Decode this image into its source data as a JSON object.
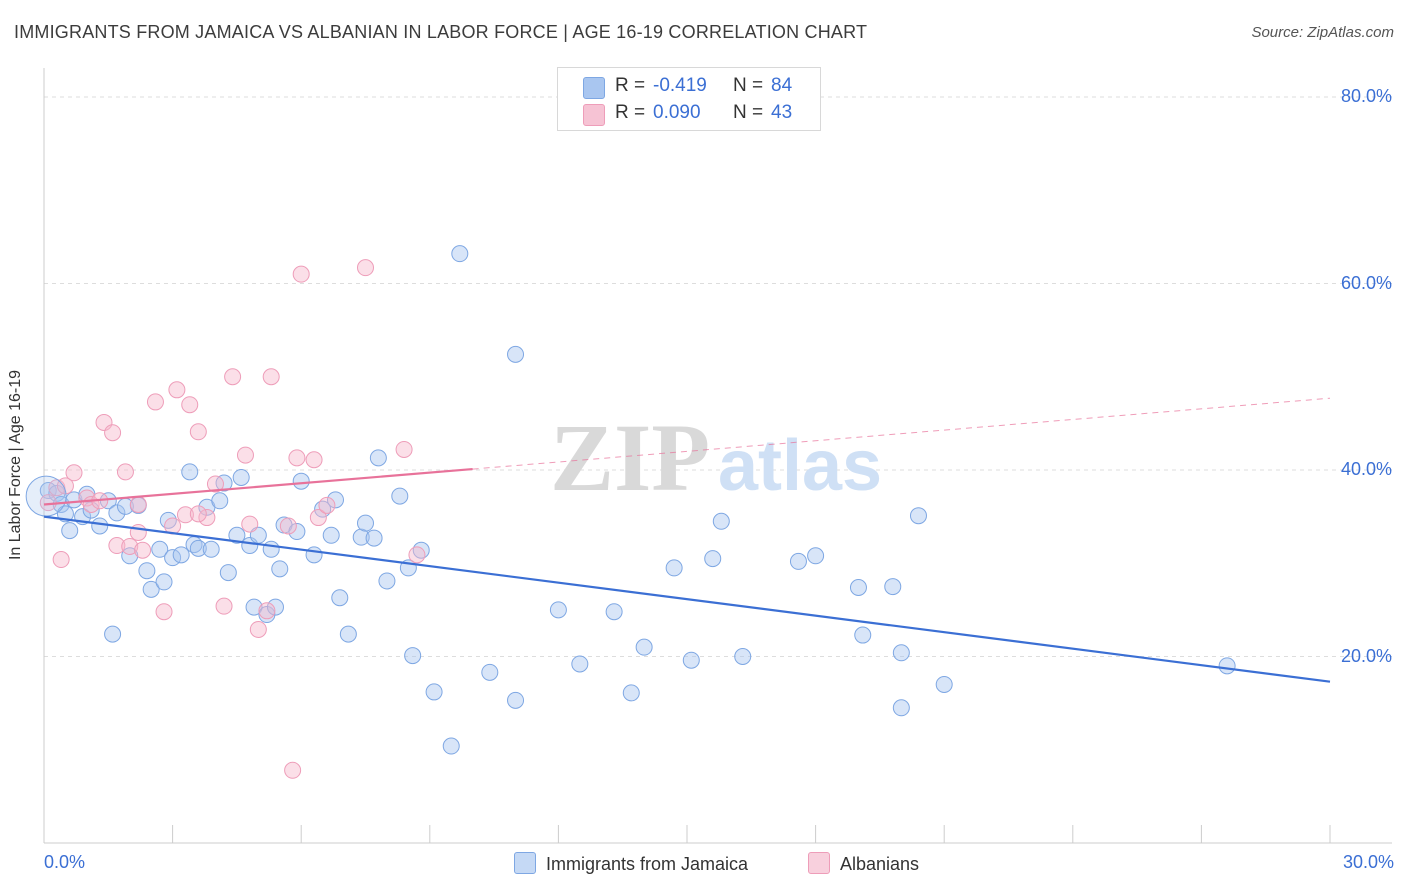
{
  "title": "IMMIGRANTS FROM JAMAICA VS ALBANIAN IN LABOR FORCE | AGE 16-19 CORRELATION CHART",
  "source": "Source: ZipAtlas.com",
  "watermark": "ZIPatlas",
  "colors": {
    "blue": "#3b6fd4",
    "blue_fill": "#a9c6f0",
    "pink": "#e8729a",
    "pink_fill": "#f6b8cc"
  },
  "legend": {
    "rows": [
      {
        "r_label": "R =",
        "r_value": "-0.419",
        "n_label": "N =",
        "n_value": "84"
      },
      {
        "r_label": "R =",
        "r_value": "0.090",
        "n_label": "N =",
        "n_value": "43"
      }
    ]
  },
  "chart_data": {
    "type": "scatter",
    "title": "IMMIGRANTS FROM JAMAICA VS ALBANIAN IN LABOR FORCE | AGE 16-19 CORRELATION CHART",
    "xlabel": "",
    "ylabel": "In Labor Force | Age 16-19",
    "xlim": [
      0,
      30
    ],
    "ylim": [
      0,
      80
    ],
    "x_tick_labels": [
      "0.0%",
      "30.0%"
    ],
    "y_tick_labels": [
      "20.0%",
      "40.0%",
      "60.0%",
      "80.0%"
    ],
    "y_ticks": [
      20,
      40,
      60,
      80
    ],
    "grid": true,
    "legend_position": "top-center",
    "series": [
      {
        "name": "Immigrants from Jamaica",
        "color": "#3b6fd4",
        "trend": {
          "x": [
            0,
            30
          ],
          "y": [
            35.0,
            17.3
          ],
          "dashed_from": null
        },
        "points": [
          [
            0.1,
            37.8
          ],
          [
            0.3,
            37.5
          ],
          [
            0.4,
            36.3
          ],
          [
            0.5,
            35.3
          ],
          [
            0.6,
            33.5
          ],
          [
            0.7,
            36.8
          ],
          [
            0.9,
            35.0
          ],
          [
            1.0,
            37.4
          ],
          [
            1.1,
            35.7
          ],
          [
            1.3,
            34.0
          ],
          [
            1.5,
            36.7
          ],
          [
            1.7,
            35.4
          ],
          [
            1.9,
            36.1
          ],
          [
            2.0,
            30.8
          ],
          [
            2.2,
            36.2
          ],
          [
            2.4,
            29.2
          ],
          [
            2.5,
            27.2
          ],
          [
            2.7,
            31.5
          ],
          [
            2.8,
            28.0
          ],
          [
            2.9,
            34.6
          ],
          [
            3.0,
            30.6
          ],
          [
            3.2,
            30.9
          ],
          [
            3.4,
            39.8
          ],
          [
            3.5,
            32.0
          ],
          [
            3.6,
            31.6
          ],
          [
            3.8,
            36.0
          ],
          [
            3.9,
            31.5
          ],
          [
            4.1,
            36.7
          ],
          [
            4.2,
            38.6
          ],
          [
            4.3,
            29.0
          ],
          [
            4.5,
            33.0
          ],
          [
            4.6,
            39.2
          ],
          [
            4.8,
            31.9
          ],
          [
            4.9,
            25.3
          ],
          [
            5.0,
            33.0
          ],
          [
            5.2,
            24.5
          ],
          [
            5.3,
            31.5
          ],
          [
            5.4,
            25.3
          ],
          [
            5.5,
            29.4
          ],
          [
            5.6,
            34.1
          ],
          [
            5.9,
            33.4
          ],
          [
            6.0,
            38.8
          ],
          [
            6.3,
            30.9
          ],
          [
            6.5,
            35.8
          ],
          [
            6.7,
            33.0
          ],
          [
            6.8,
            36.8
          ],
          [
            6.9,
            26.3
          ],
          [
            7.1,
            22.4
          ],
          [
            7.4,
            32.8
          ],
          [
            7.5,
            34.3
          ],
          [
            7.7,
            32.7
          ],
          [
            7.8,
            41.3
          ],
          [
            8.0,
            28.1
          ],
          [
            8.3,
            37.2
          ],
          [
            8.5,
            29.5
          ],
          [
            8.6,
            20.1
          ],
          [
            8.8,
            31.4
          ],
          [
            9.1,
            16.2
          ],
          [
            9.5,
            10.4
          ],
          [
            9.7,
            63.2
          ],
          [
            10.4,
            18.3
          ],
          [
            11.0,
            52.4
          ],
          [
            11.0,
            15.3
          ],
          [
            12.0,
            25.0
          ],
          [
            12.5,
            19.2
          ],
          [
            13.3,
            24.8
          ],
          [
            13.7,
            16.1
          ],
          [
            14.0,
            21.0
          ],
          [
            14.7,
            29.5
          ],
          [
            15.1,
            19.6
          ],
          [
            15.6,
            30.5
          ],
          [
            15.8,
            34.5
          ],
          [
            16.3,
            20.0
          ],
          [
            17.6,
            30.2
          ],
          [
            18.0,
            30.8
          ],
          [
            19.0,
            27.4
          ],
          [
            19.1,
            22.3
          ],
          [
            19.8,
            27.5
          ],
          [
            20.0,
            20.4
          ],
          [
            20.0,
            14.5
          ],
          [
            20.4,
            35.1
          ],
          [
            21.0,
            17.0
          ],
          [
            27.6,
            19.0
          ],
          [
            1.6,
            22.4
          ]
        ]
      },
      {
        "name": "Albanians",
        "color": "#e8729a",
        "trend": {
          "x": [
            0,
            30
          ],
          "y": [
            36.3,
            47.7
          ],
          "dashed_from": 10
        },
        "points": [
          [
            0.1,
            36.5
          ],
          [
            0.3,
            38.1
          ],
          [
            0.4,
            30.4
          ],
          [
            0.5,
            38.3
          ],
          [
            0.7,
            39.7
          ],
          [
            1.0,
            37.0
          ],
          [
            1.1,
            36.3
          ],
          [
            1.3,
            36.7
          ],
          [
            1.4,
            45.1
          ],
          [
            1.6,
            44.0
          ],
          [
            1.7,
            31.9
          ],
          [
            1.9,
            39.8
          ],
          [
            2.0,
            31.8
          ],
          [
            2.2,
            33.3
          ],
          [
            2.3,
            31.4
          ],
          [
            2.6,
            47.3
          ],
          [
            2.8,
            24.8
          ],
          [
            3.0,
            34.0
          ],
          [
            3.1,
            48.6
          ],
          [
            3.3,
            35.2
          ],
          [
            3.4,
            47.0
          ],
          [
            3.6,
            44.1
          ],
          [
            3.8,
            34.9
          ],
          [
            4.0,
            38.5
          ],
          [
            4.2,
            25.4
          ],
          [
            4.4,
            50.0
          ],
          [
            4.7,
            41.6
          ],
          [
            4.8,
            34.2
          ],
          [
            5.0,
            22.9
          ],
          [
            5.2,
            24.9
          ],
          [
            5.3,
            50.0
          ],
          [
            5.7,
            34.0
          ],
          [
            5.9,
            41.3
          ],
          [
            6.0,
            61.0
          ],
          [
            6.3,
            41.1
          ],
          [
            6.4,
            34.9
          ],
          [
            6.6,
            36.2
          ],
          [
            7.5,
            61.7
          ],
          [
            8.4,
            42.2
          ],
          [
            8.7,
            30.9
          ],
          [
            5.8,
            7.8
          ],
          [
            3.6,
            35.3
          ],
          [
            2.2,
            36.3
          ]
        ]
      }
    ]
  },
  "bottom_legend": [
    "Immigrants from Jamaica",
    "Albanians"
  ]
}
